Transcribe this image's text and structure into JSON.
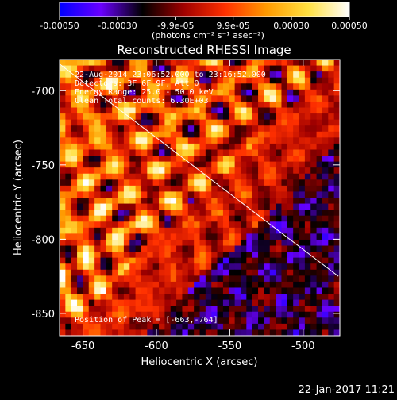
{
  "colorbar": {
    "ticks": [
      "-0.00050",
      "-0.00030",
      "-9.9e-05",
      "9.9e-05",
      "0.00030",
      "0.00050"
    ],
    "tick_values": [
      -0.0005,
      -0.0003,
      -9.9e-05,
      9.9e-05,
      0.0003,
      0.0005
    ],
    "units": "(photons cm⁻² s⁻¹ asec⁻²)",
    "range": [
      -0.0005,
      0.0005
    ],
    "colors": [
      "#0000ff",
      "#6a00ff",
      "#000000",
      "#a00000",
      "#ff3000",
      "#ff9a00",
      "#ffe040",
      "#ffffff"
    ]
  },
  "chart_data": {
    "type": "heatmap",
    "title": "Reconstructed RHESSI Image",
    "xlabel": "Heliocentric X (arcsec)",
    "ylabel": "Heliocentric Y (arcsec)",
    "xlim": [
      -666,
      -475
    ],
    "ylim": [
      -865,
      -679
    ],
    "xticks": [
      -650,
      -600,
      -550,
      -500
    ],
    "yticks": [
      -700,
      -750,
      -800,
      -850
    ],
    "xtick_labels": [
      "-650",
      "-600",
      "-550",
      "-500"
    ],
    "ytick_labels": [
      "-700",
      "-750",
      "-800",
      "-850"
    ],
    "limb_line": {
      "x": [
        -666,
        -476
      ],
      "y": [
        -682,
        -825
      ]
    },
    "peak": {
      "x": -663,
      "y": -764
    },
    "annotations": [
      "22-Aug-2014 23:06:52.000 to 23:16:52.000",
      "Detectors: 3F 6F 9F, Att 0",
      "Energy Range: 25.0 - 50.0 keV",
      "Clean    Total counts: 6.30E+03"
    ],
    "peak_label": "Position of Peak = [-663,-764]"
  },
  "timestamp": "22-Jan-2017 11:21"
}
